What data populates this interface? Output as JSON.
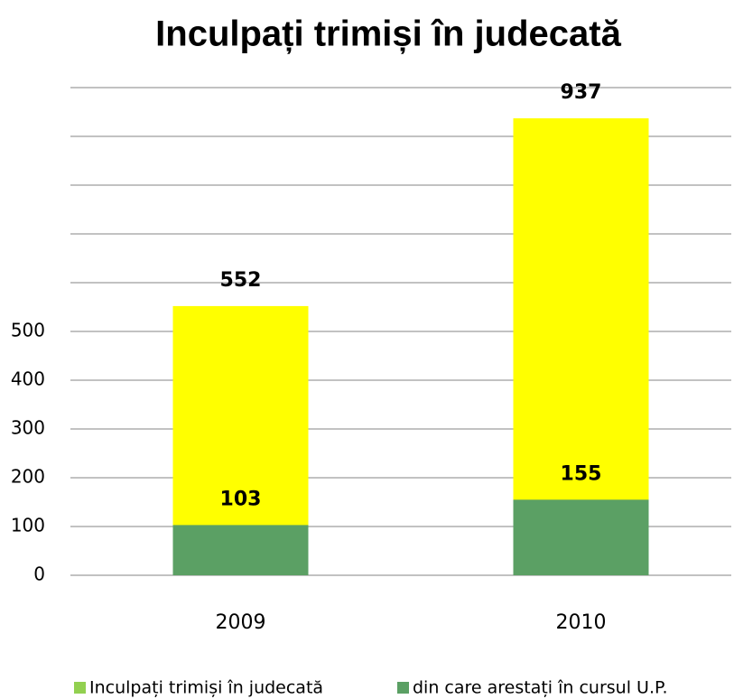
{
  "chart_data": {
    "type": "bar",
    "title": "Inculpați trimiși în judecată",
    "categories": [
      "2009",
      "2010"
    ],
    "series": [
      {
        "name": "Inculpați trimiși în judecată",
        "color": "#ffff00",
        "legend_color": "#92d050",
        "values": [
          552,
          937
        ]
      },
      {
        "name": "din care arestați în cursul U.P.",
        "color": "#5ba064",
        "values": [
          103,
          155
        ]
      }
    ],
    "ylim": [
      0,
      1000
    ],
    "yticks": [
      0,
      100,
      200,
      300,
      400,
      500
    ],
    "grid_lines": [
      0,
      100,
      200,
      300,
      400,
      500,
      600,
      700,
      800,
      900,
      1000
    ],
    "grid": true
  }
}
